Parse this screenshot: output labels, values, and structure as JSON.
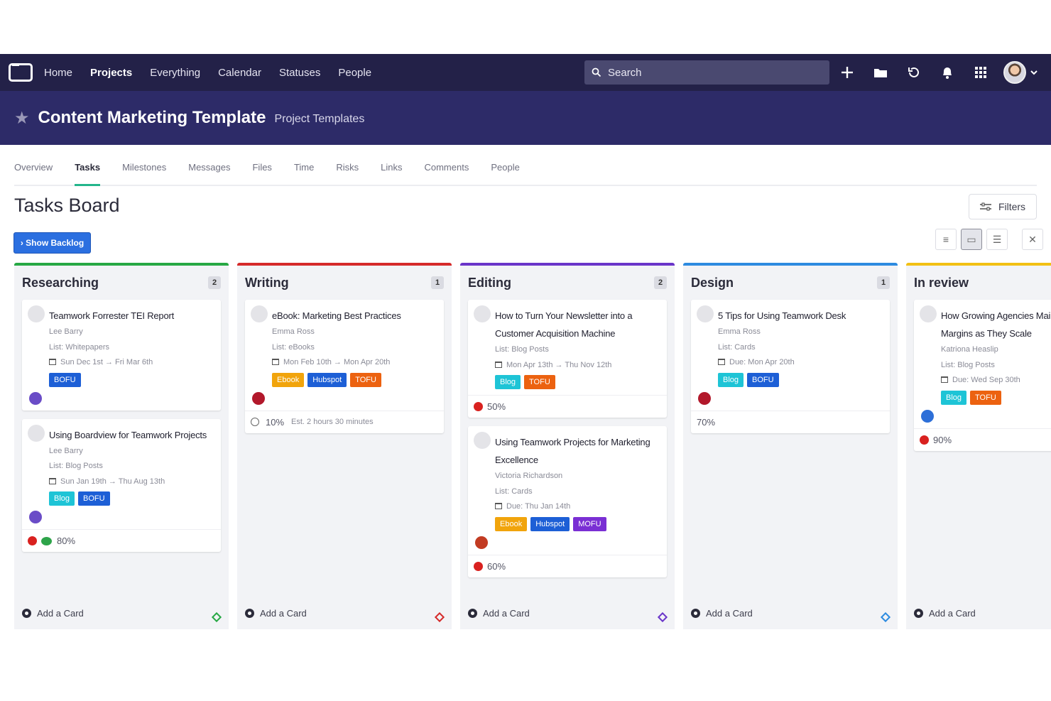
{
  "nav": {
    "items": [
      "Home",
      "Projects",
      "Everything",
      "Calendar",
      "Statuses",
      "People"
    ],
    "active_index": 1,
    "search_placeholder": "Search"
  },
  "project": {
    "title": "Content Marketing Template",
    "subtitle": "Project Templates"
  },
  "tabs": [
    "Overview",
    "Tasks",
    "Milestones",
    "Messages",
    "Files",
    "Time",
    "Risks",
    "Links",
    "Comments",
    "People"
  ],
  "board": {
    "title": "Tasks Board",
    "filters_label": "Filters",
    "backlog_label": "› Show Backlog",
    "add_card_label": "Add a Card"
  },
  "colors": {
    "nav_bg": "#232148",
    "header_bg": "#2d2b68",
    "tab_active": "#23b58b",
    "blog": "#1ec4d6",
    "bofu": "#1d5fd6",
    "ebook": "#f1a40c",
    "hubspot": "#1d5fd6",
    "tofu": "#ec6210",
    "mofu": "#7a2fd4"
  },
  "columns": [
    {
      "title": "Researching",
      "count": "2",
      "color": "#27a844",
      "cards": [
        {
          "title": "Teamwork Forrester TEI Report",
          "assignee": "Lee Barry",
          "list": "List: Whitepapers",
          "date": "Sun Dec 1st → Fri Mar 6th",
          "tags": [
            "BOFU"
          ],
          "avatar": "#6a4cc7"
        },
        {
          "title": "Using Boardview for Teamwork Projects",
          "assignee": "Lee Barry",
          "list": "List: Blog Posts",
          "date": "Sun Jan 19th → Thu Aug 13th",
          "tags": [
            "Blog",
            "BOFU"
          ],
          "avatar": "#6a4cc7",
          "progress": "80%",
          "flags": true
        }
      ]
    },
    {
      "title": "Writing",
      "count": "1",
      "color": "#d52a2a",
      "cards": [
        {
          "title": "eBook: Marketing Best Practices",
          "assignee": "Emma Ross",
          "list": "List: eBooks",
          "date": "Mon Feb 10th → Mon Apr 20th",
          "tags": [
            "Ebook",
            "Hubspot",
            "TOFU"
          ],
          "avatar": "#b2182b",
          "progress": "10%",
          "estimate": "Est. 2 hours 30 minutes"
        }
      ]
    },
    {
      "title": "Editing",
      "count": "2",
      "color": "#6a35c9",
      "cards": [
        {
          "title": "How to Turn Your Newsletter into a Customer Acquisition Machine",
          "list": "List: Blog Posts",
          "date": "Mon Apr 13th → Thu Nov 12th",
          "tags": [
            "Blog",
            "TOFU"
          ],
          "progress": "50%"
        },
        {
          "title": "Using Teamwork Projects for Marketing Excellence",
          "assignee": "Victoria Richardson",
          "list": "List: Cards",
          "date": "Due: Thu Jan 14th",
          "tags": [
            "Ebook",
            "Hubspot",
            "MOFU"
          ],
          "avatar": "#c23b22",
          "progress": "60%"
        }
      ]
    },
    {
      "title": "Design",
      "count": "1",
      "color": "#2d8be0",
      "cards": [
        {
          "title": "5 Tips for Using Teamwork Desk",
          "assignee": "Emma Ross",
          "list": "List: Cards",
          "date": "Due: Mon Apr 20th",
          "tags": [
            "Blog",
            "BOFU"
          ],
          "avatar": "#b2182b",
          "progress": "70%"
        }
      ]
    },
    {
      "title": "In review",
      "count": "",
      "color": "#f2c014",
      "cards": [
        {
          "title": "How Growing Agencies Maintain Healthy Margins as They Scale",
          "assignee": "Katriona Heaslip",
          "list": "List: Blog Posts",
          "date": "Due: Wed Sep 30th",
          "tags": [
            "Blog",
            "TOFU"
          ],
          "avatar": "#2d6fd8",
          "progress": "90%"
        }
      ]
    }
  ]
}
